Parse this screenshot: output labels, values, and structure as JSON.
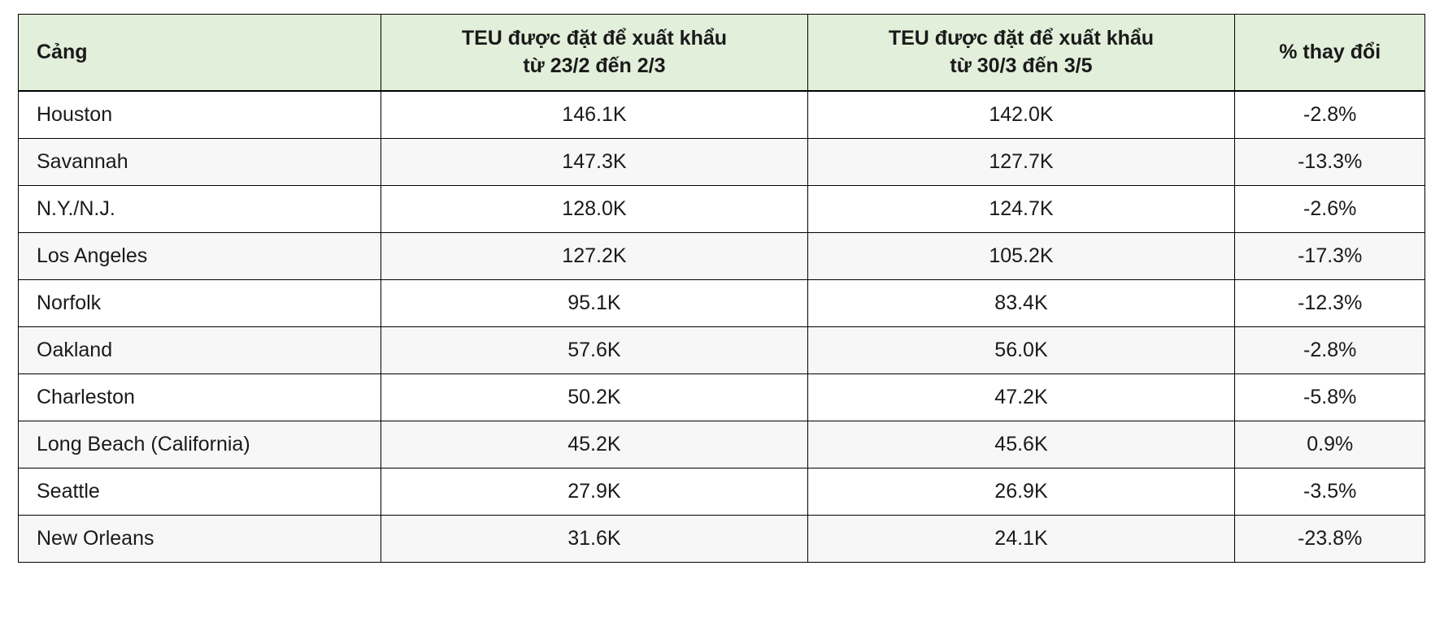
{
  "chart_data": {
    "type": "table",
    "headers": [
      "Cảng",
      "TEU được đặt để xuất khẩu\ntừ 23/2 đến 2/3",
      "TEU được đặt để xuất khẩu\ntừ 30/3 đến 3/5",
      "% thay đổi"
    ],
    "rows": [
      {
        "port": "Houston",
        "teu_period1": "146.1K",
        "teu_period2": "142.0K",
        "pct_change": "-2.8%"
      },
      {
        "port": "Savannah",
        "teu_period1": "147.3K",
        "teu_period2": "127.7K",
        "pct_change": "-13.3%"
      },
      {
        "port": "N.Y./N.J.",
        "teu_period1": "128.0K",
        "teu_period2": "124.7K",
        "pct_change": "-2.6%"
      },
      {
        "port": "Los Angeles",
        "teu_period1": "127.2K",
        "teu_period2": "105.2K",
        "pct_change": "-17.3%"
      },
      {
        "port": "Norfolk",
        "teu_period1": "95.1K",
        "teu_period2": "83.4K",
        "pct_change": "-12.3%"
      },
      {
        "port": "Oakland",
        "teu_period1": "57.6K",
        "teu_period2": "56.0K",
        "pct_change": "-2.8%"
      },
      {
        "port": "Charleston",
        "teu_period1": "50.2K",
        "teu_period2": "47.2K",
        "pct_change": "-5.8%"
      },
      {
        "port": "Long Beach (California)",
        "teu_period1": "45.2K",
        "teu_period2": "45.6K",
        "pct_change": "0.9%"
      },
      {
        "port": "Seattle",
        "teu_period1": "27.9K",
        "teu_period2": "26.9K",
        "pct_change": "-3.5%"
      },
      {
        "port": "New Orleans",
        "teu_period1": "31.6K",
        "teu_period2": "24.1K",
        "pct_change": "-23.8%"
      }
    ]
  },
  "colors": {
    "header_background": "#e2efda",
    "row_alternate_background": "#f7f7f7",
    "border": "#000000",
    "text": "#1a1a1a"
  }
}
